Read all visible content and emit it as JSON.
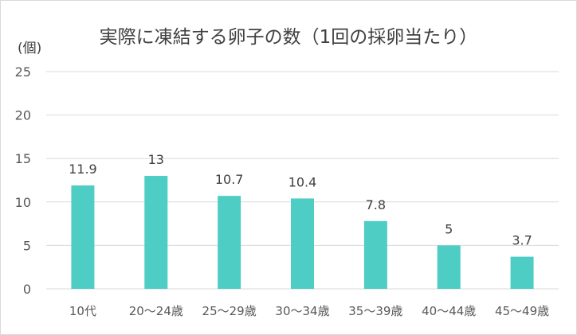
{
  "chart_data": {
    "type": "bar",
    "title": "実際に凍結する卵子の数（1回の採卵当たり）",
    "ylabel": "(個)",
    "xlabel": "",
    "categories": [
      "10代",
      "20～24歳",
      "25～29歳",
      "30～34歳",
      "35～39歳",
      "40～44歳",
      "45～49歳"
    ],
    "values": [
      11.9,
      13,
      10.7,
      10.4,
      7.8,
      5,
      3.7
    ],
    "data_labels": [
      "11.9",
      "13",
      "10.7",
      "10.4",
      "7.8",
      "5",
      "3.7"
    ],
    "ylim": [
      0,
      25
    ],
    "yticks": [
      0,
      5,
      10,
      15,
      20,
      25
    ],
    "grid": true,
    "legend": "none",
    "bar_color": "#4ecdc4",
    "grid_color": "#d9d9d9"
  }
}
